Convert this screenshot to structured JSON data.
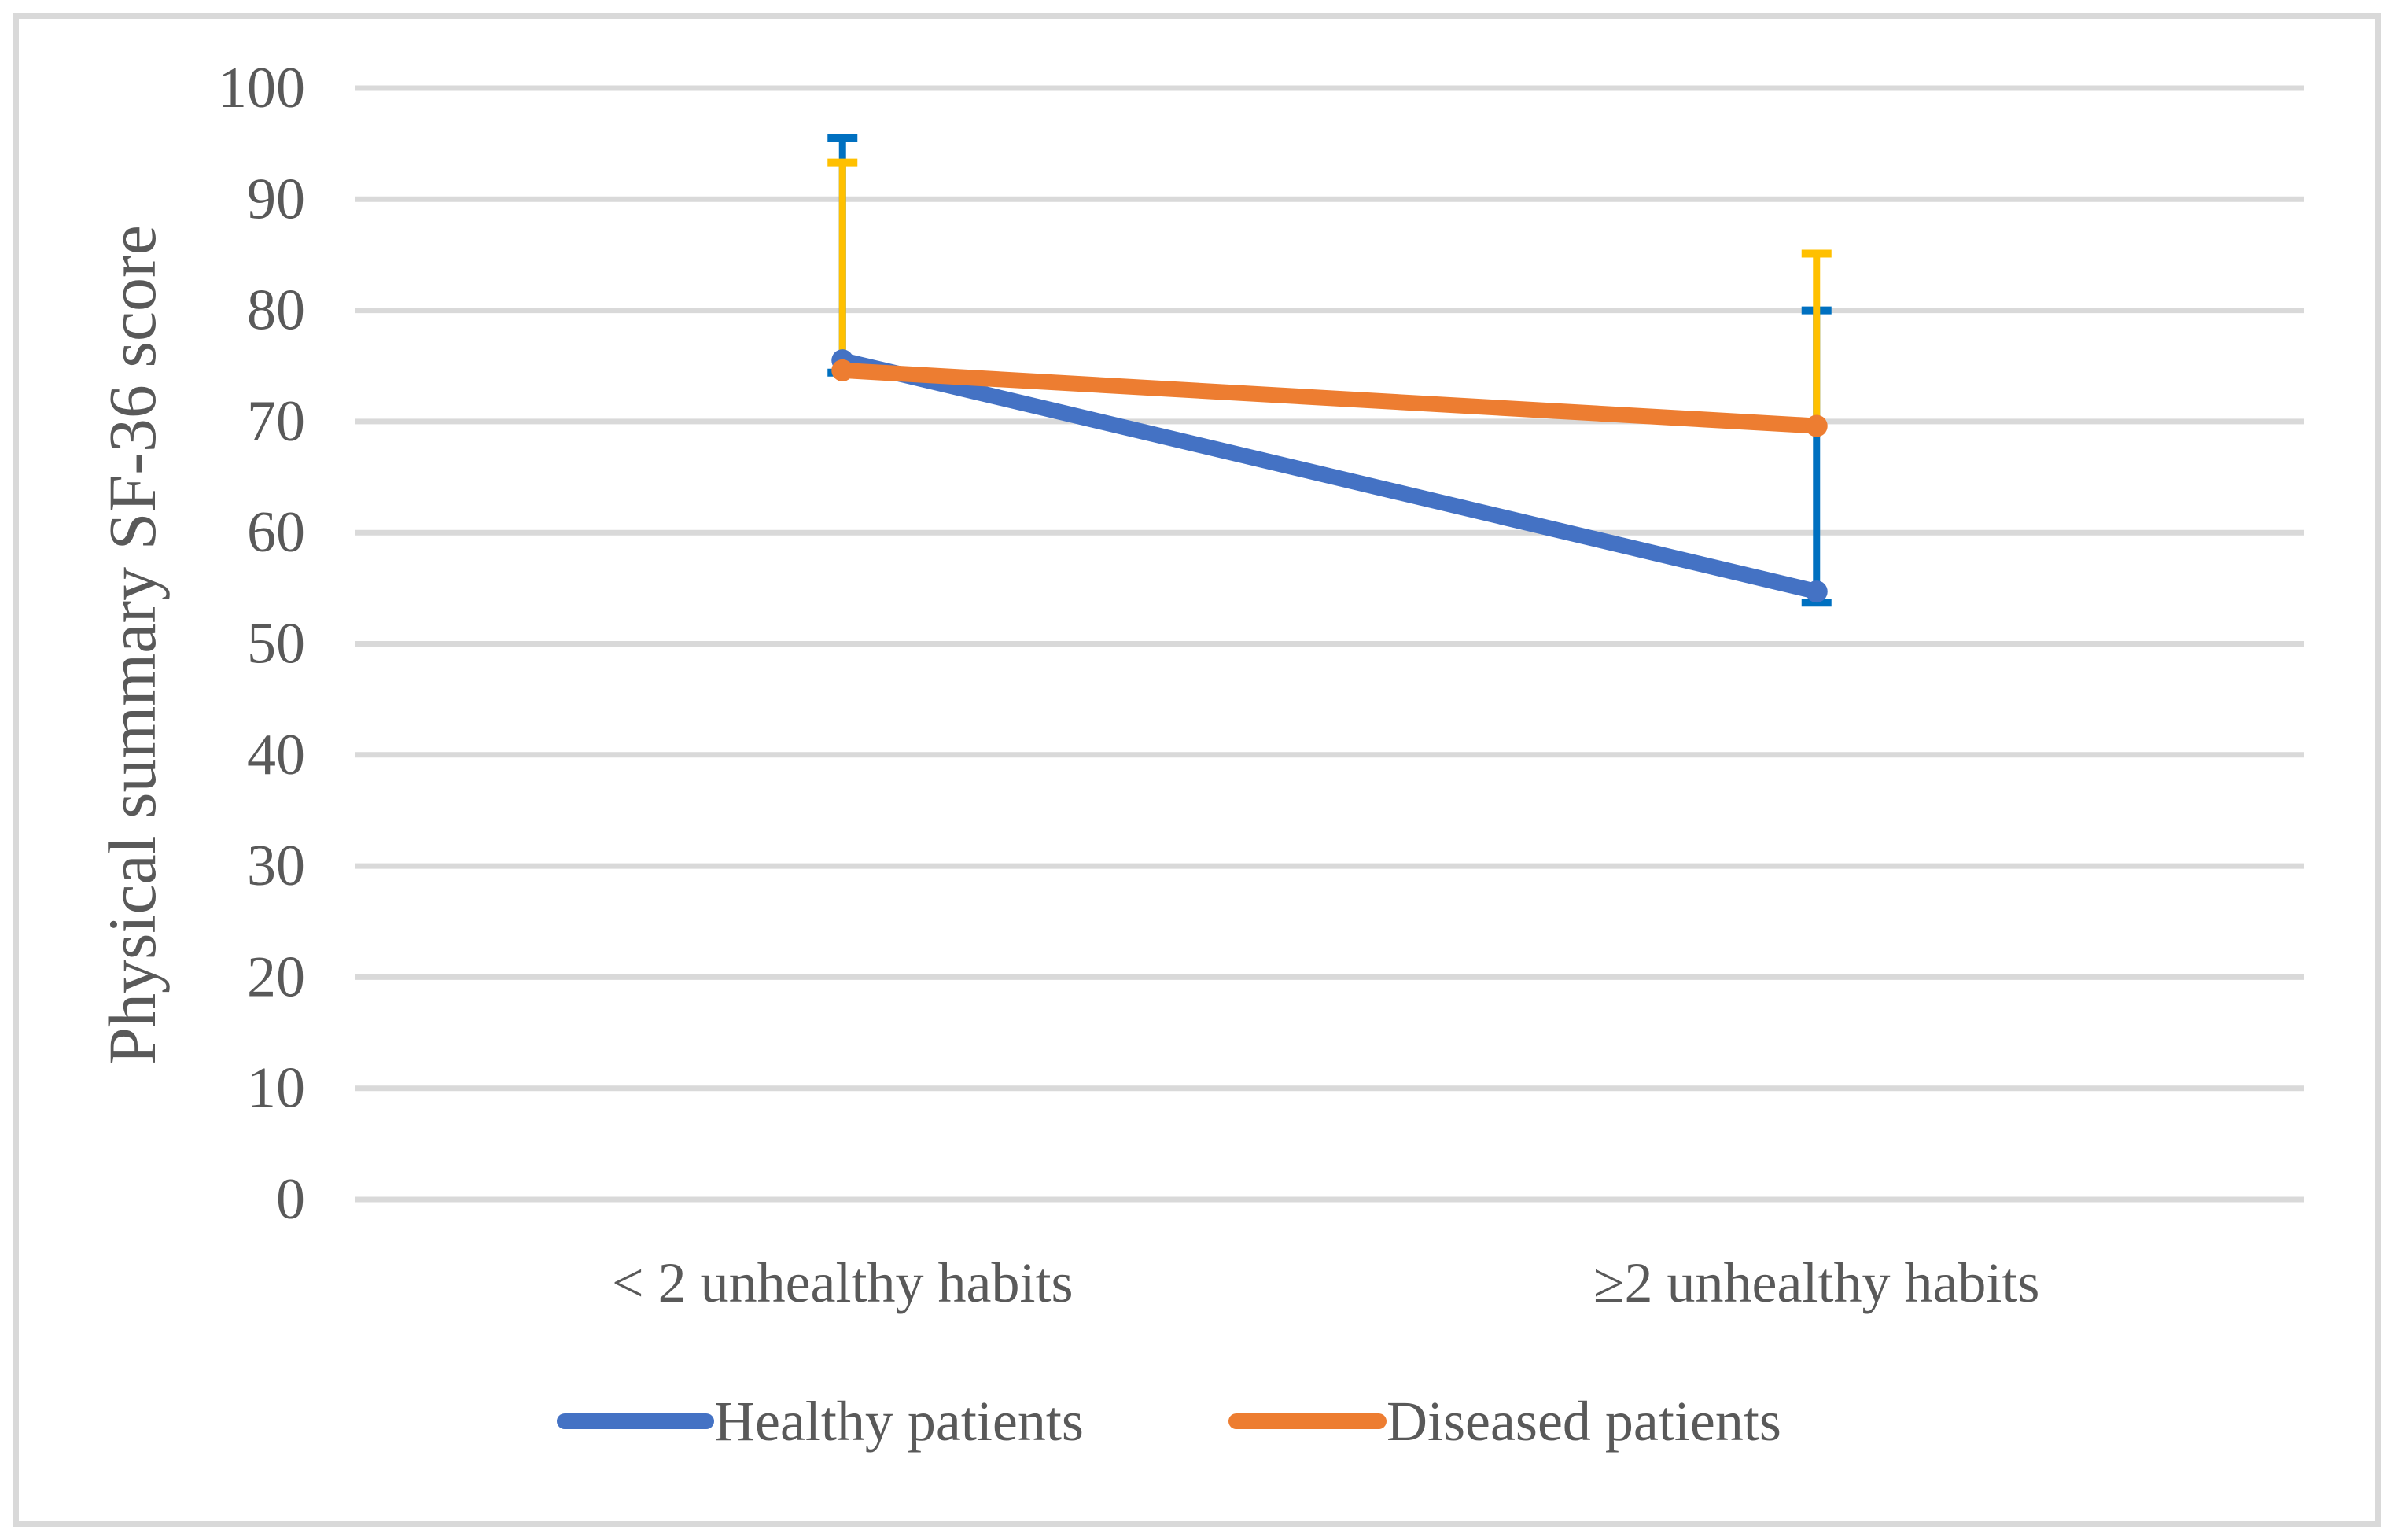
{
  "figure": {
    "background": "#FFFFFF",
    "border_color": "#D9D9D9"
  },
  "chart_data": {
    "type": "line",
    "title": "",
    "xlabel": "",
    "ylabel": "Physical summary SF-36 score",
    "categories": [
      "< 2 unhealthy habits",
      "≥2 unhealthy habits"
    ],
    "ylim": [
      0,
      100
    ],
    "ytick_step": 10,
    "ytick_labels": [
      "0",
      "10",
      "20",
      "30",
      "40",
      "50",
      "60",
      "70",
      "80",
      "90",
      "100"
    ],
    "grid": true,
    "gridline_color": "#D9D9D9",
    "text_color": "#595959",
    "legend_position": "bottom",
    "series": [
      {
        "name": "Healthy patients",
        "color": "#4472C4",
        "error_bar_color": "#0070C0",
        "values": [
          75.5,
          54.7
        ],
        "error_plus": [
          20.0,
          25.3
        ],
        "error_minus": [
          1.1,
          1.0
        ]
      },
      {
        "name": "Diseased patients",
        "color": "#ED7D31",
        "error_bar_color": "#FFC000",
        "values": [
          74.6,
          69.6
        ],
        "error_plus": [
          18.7,
          15.5
        ],
        "error_minus": [
          0,
          0
        ]
      }
    ]
  }
}
